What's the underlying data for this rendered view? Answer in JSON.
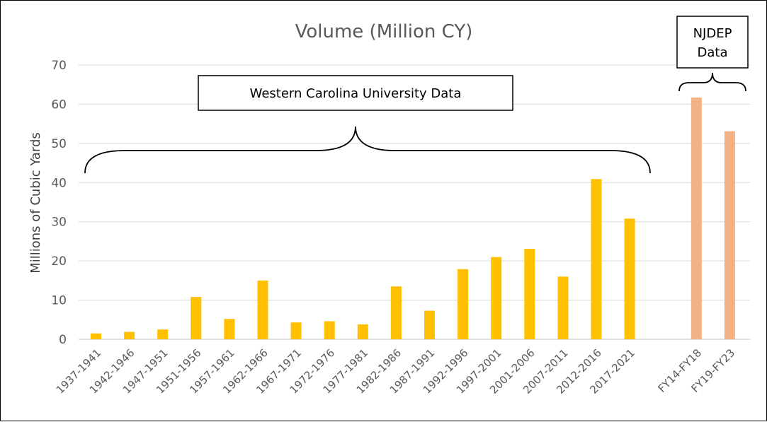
{
  "chart_data": {
    "type": "bar",
    "title": "Volume (Million CY)",
    "ylabel": "Millions of Cubic Yards",
    "xlabel": "",
    "ylim": [
      0,
      70
    ],
    "yticks": [
      0,
      10,
      20,
      30,
      40,
      50,
      60,
      70
    ],
    "grid": true,
    "series": [
      {
        "categories": [
          "1937-1941",
          "1942-1946",
          "1947-1951",
          "1951-1956",
          "1957-1961",
          "1962-1966",
          "1967-1971",
          "1972-1976",
          "1977-1981",
          "1982-1986",
          "1987-1991",
          "1992-1996",
          "1997-2001",
          "2001-2006",
          "2007-2011",
          "2012-2016",
          "2017-2021"
        ],
        "values": [
          1.5,
          1.9,
          2.5,
          10.8,
          5.2,
          15.0,
          4.3,
          4.6,
          3.8,
          13.5,
          7.3,
          17.9,
          21.0,
          23.1,
          16.0,
          40.9,
          30.8
        ],
        "color": "#FFC000"
      },
      {
        "categories": [
          "FY14-FY18",
          "FY19-FY23"
        ],
        "values": [
          61.7,
          53.1
        ],
        "color": "#F4B183"
      }
    ],
    "annotations": [
      {
        "text": "Western Carolina University Data"
      },
      {
        "text": [
          "NJDEP",
          "Data"
        ]
      }
    ]
  }
}
